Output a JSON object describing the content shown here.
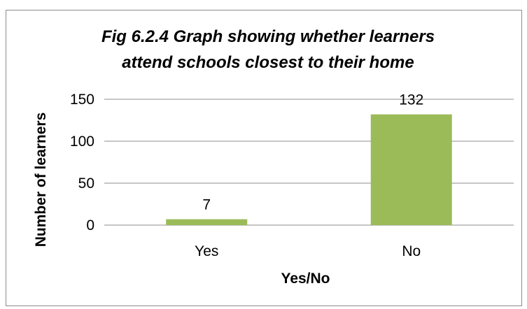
{
  "chart_data": {
    "type": "bar",
    "title_lines": [
      "Fig 6.2.4  Graph showing whether learners",
      "attend schools closest to their home"
    ],
    "categories": [
      "Yes",
      "No"
    ],
    "values": [
      7,
      132
    ],
    "data_labels": [
      "7",
      "132"
    ],
    "xlabel": "Yes/No",
    "ylabel": "Number of learners",
    "ylim": [
      0,
      150
    ],
    "yticks": [
      0,
      50,
      100,
      150
    ],
    "grid": true,
    "legend": "none",
    "bar_color": "#9bbb59"
  }
}
